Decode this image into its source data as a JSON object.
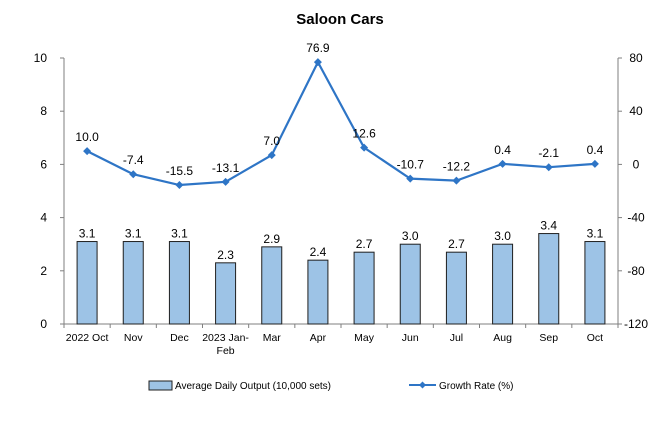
{
  "chart_data": {
    "type": "bar+line",
    "title": "Saloon Cars",
    "categories": [
      [
        "2022 Oct"
      ],
      [
        "Nov"
      ],
      [
        "Dec"
      ],
      [
        "2023 Jan-",
        "Feb"
      ],
      [
        "Mar"
      ],
      [
        "Apr"
      ],
      [
        "May"
      ],
      [
        "Jun"
      ],
      [
        "Jul"
      ],
      [
        "Aug"
      ],
      [
        "Sep"
      ],
      [
        "Oct"
      ]
    ],
    "series": [
      {
        "name": "Average Daily Output (10,000 sets)",
        "type": "bar",
        "axis": "left",
        "values": [
          3.1,
          3.1,
          3.1,
          2.3,
          2.9,
          2.4,
          2.7,
          3.0,
          2.7,
          3.0,
          3.4,
          3.1
        ],
        "labels": [
          "3.1",
          "3.1",
          "3.1",
          "2.3",
          "2.9",
          "2.4",
          "2.7",
          "3.0",
          "2.7",
          "3.0",
          "3.4",
          "3.1"
        ],
        "color": "#9dc3e6",
        "edge_color": "#1f1f1f"
      },
      {
        "name": "Growth Rate (%)",
        "type": "line",
        "axis": "right",
        "values": [
          10.0,
          -7.4,
          -15.5,
          -13.1,
          7.0,
          76.9,
          12.6,
          -10.7,
          -12.2,
          0.4,
          -2.1,
          0.4
        ],
        "labels": [
          "10.0",
          "-7.4",
          "-15.5",
          "-13.1",
          "7.0",
          "76.9",
          "12.6",
          "-10.7",
          "-12.2",
          "0.4",
          "-2.1",
          "0.4"
        ],
        "color": "#2e75c6",
        "marker": "diamond"
      }
    ],
    "y_left": {
      "min": 0,
      "max": 10,
      "ticks": [
        "0",
        "2",
        "4",
        "6",
        "8",
        "10"
      ]
    },
    "y_right": {
      "min": -120,
      "max": 80,
      "ticks": [
        "-120",
        "-80",
        "-40",
        "0",
        "40",
        "80"
      ]
    },
    "grid": false,
    "legend_position": "bottom"
  }
}
